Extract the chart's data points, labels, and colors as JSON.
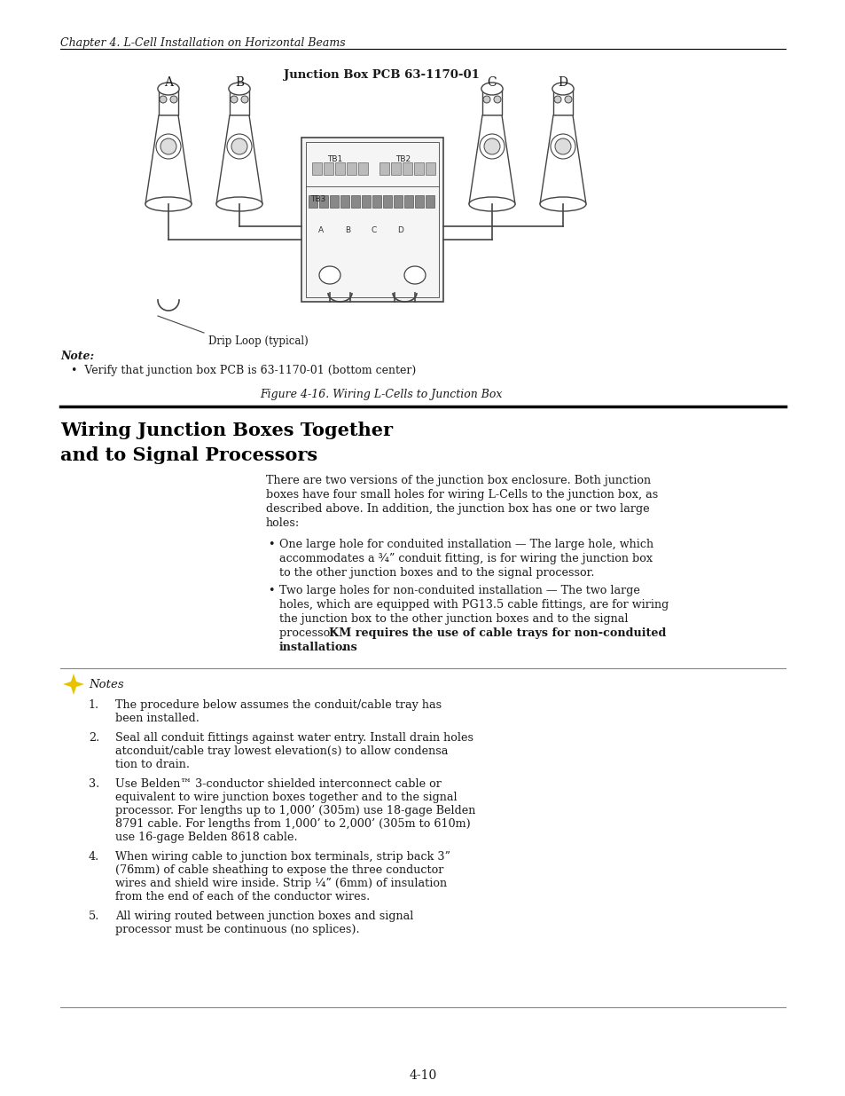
{
  "page_bg": "#ffffff",
  "header_text": "Chapter 4. L-Cell Installation on Horizontal Beams",
  "figure_title": "Junction Box PCB 63-1170-01",
  "figure_caption": "Figure 4-16. Wiring L-Cells to Junction Box",
  "section_title_line1": "Wiring Junction Boxes Together",
  "section_title_line2": "and to Signal Processors",
  "note_label": "Note:",
  "note_bullet": "Verify that junction box PCB is 63-1170-01 (bottom center)",
  "drip_loop_label": "Drip Loop (typical)",
  "para_line1": "There are two versions of the junction box enclosure. Both junction",
  "para_line2": "boxes have four small holes for wiring L-Cells to the junction box, as",
  "para_line3": "described above. In addition, the junction box has one or two large",
  "para_line4": "holes:",
  "b1l1": "One large hole for conduited installation — The large hole, which",
  "b1l2": "accommodates a ¾” conduit fitting, is for wiring the junction box",
  "b1l3": "to the other junction boxes and to the signal processor.",
  "b2l1": "Two large holes for non-conduited installation — The two large",
  "b2l2": "holes, which are equipped with PG13.5 cable fittings, are for wiring",
  "b2l3": "the junction box to the other junction boxes and to the signal",
  "b2l4": "processor. ",
  "b2_bold1": "KM requires the use of cable trays for non-conduited",
  "b2_bold2": "installations",
  "b2_period": ".",
  "notes_header": "Notes",
  "n1l1": "The procedure below assumes the conduit/cable tray has",
  "n1l2": "been installed.",
  "n2l1": "Seal all conduit fittings against water entry. Install drain holes",
  "n2l2": "atconduit/cable tray lowest elevation(s) to allow condensa",
  "n2l3": "tion to drain.",
  "n3l1": "Use Belden™ 3-conductor shielded interconnect cable or",
  "n3l2": "equivalent to wire junction boxes together and to the signal",
  "n3l3": "processor. For lengths up to 1,000’ (305m) use 18-gage Belden",
  "n3l4": "8791 cable. For lengths from 1,000’ to 2,000’ (305m to 610m)",
  "n3l5": "use 16-gage Belden 8618 cable.",
  "n4l1": "When wiring cable to junction box terminals, strip back 3”",
  "n4l2": "(76mm) of cable sheathing to expose the three conductor",
  "n4l3": "wires and shield wire inside. Strip ¼” (6mm) of insulation",
  "n4l4": "from the end of each of the conductor wires.",
  "n5l1": "All wiring routed between junction boxes and signal",
  "n5l2": "processor must be continuous (no splices).",
  "page_number": "4-10",
  "text_color": "#1a1a1a",
  "line_color": "#333333"
}
